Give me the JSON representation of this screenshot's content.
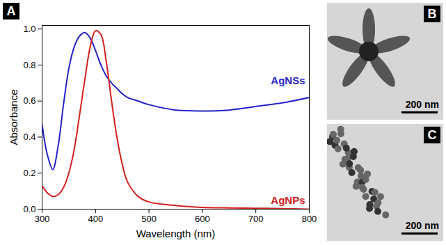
{
  "chart_data": {
    "type": "line",
    "panel": "A",
    "x_label": "Wavelength (nm)",
    "y_label": "Absorbance",
    "x": [
      300,
      310,
      320,
      330,
      340,
      350,
      360,
      370,
      380,
      390,
      400,
      410,
      420,
      430,
      440,
      450,
      460,
      480,
      500,
      550,
      600,
      650,
      700,
      750,
      800
    ],
    "series": [
      {
        "name": "AgNSs",
        "color": "#2323c8",
        "values": [
          0.47,
          0.3,
          0.22,
          0.35,
          0.58,
          0.78,
          0.9,
          0.96,
          0.98,
          0.95,
          0.88,
          0.8,
          0.74,
          0.7,
          0.67,
          0.64,
          0.62,
          0.6,
          0.58,
          0.55,
          0.545,
          0.55,
          0.57,
          0.59,
          0.62
        ]
      },
      {
        "name": "AgNPs",
        "color": "#d42020",
        "values": [
          0.13,
          0.09,
          0.07,
          0.08,
          0.12,
          0.2,
          0.33,
          0.52,
          0.72,
          0.9,
          0.99,
          0.97,
          0.82,
          0.6,
          0.4,
          0.25,
          0.15,
          0.07,
          0.04,
          0.02,
          0.01,
          0.007,
          0.005,
          0.003,
          0.0
        ]
      }
    ],
    "xlim": [
      300,
      800
    ],
    "xticks": [
      300,
      400,
      500,
      600,
      700,
      800
    ],
    "ylim": [
      0,
      1.02
    ],
    "yticks": [
      {
        "value": 0,
        "label": "0.0"
      },
      0.2,
      0.4,
      0.6,
      0.8,
      {
        "value": 1,
        "label": "1.0"
      }
    ],
    "grid": false
  },
  "images": [
    {
      "label": "B",
      "scale_bar": "200 nm"
    },
    {
      "label": "C",
      "scale_bar": "200 nm"
    }
  ]
}
